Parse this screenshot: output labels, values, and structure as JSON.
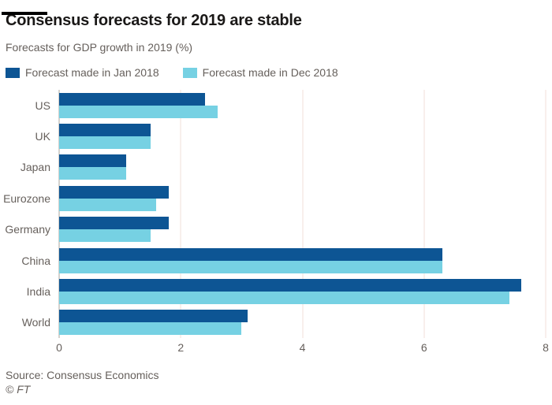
{
  "header": {
    "title": "Consensus forecasts for 2019 are stable",
    "subtitle": "Forecasts for GDP growth in 2019 (%)"
  },
  "legend": [
    {
      "label": "Forecast made in Jan 2018",
      "color": "#0d5594"
    },
    {
      "label": "Forecast made in Dec 2018",
      "color": "#76d1e3"
    }
  ],
  "chart_data": {
    "type": "bar",
    "orientation": "horizontal",
    "title": "Consensus forecasts for 2019 are stable",
    "subtitle": "Forecasts for GDP growth in 2019 (%)",
    "categories": [
      "US",
      "UK",
      "Japan",
      "Eurozone",
      "Germany",
      "China",
      "India",
      "World"
    ],
    "series": [
      {
        "name": "Forecast made in Jan 2018",
        "color": "#0d5594",
        "values": [
          2.4,
          1.5,
          1.1,
          1.8,
          1.8,
          6.3,
          7.6,
          3.1
        ]
      },
      {
        "name": "Forecast made in Dec 2018",
        "color": "#76d1e3",
        "values": [
          2.6,
          1.5,
          1.1,
          1.6,
          1.5,
          6.3,
          7.4,
          3.0
        ]
      }
    ],
    "xlabel": "",
    "ylabel": "",
    "xlim": [
      0,
      8
    ],
    "xticks": [
      0,
      2,
      4,
      6,
      8
    ],
    "grid": "vertical",
    "gridline_color": "#f2dfda",
    "zero_line_color": "#aaa49e",
    "legend_position": "top"
  },
  "footer": {
    "source": "Source: Consensus Economics",
    "copyright": "© FT"
  }
}
